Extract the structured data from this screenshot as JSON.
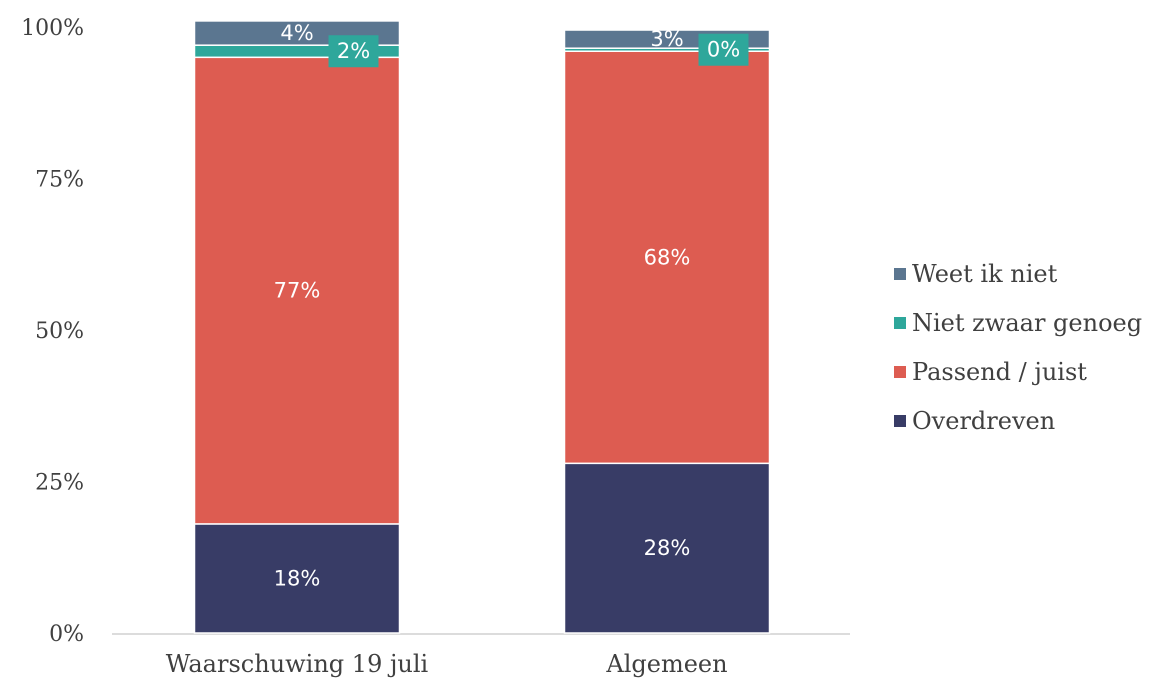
{
  "chart_data": {
    "type": "bar",
    "stacked": true,
    "categories": [
      "Waarschuwing 19 juli",
      "Algemeen"
    ],
    "ylim": [
      0,
      100
    ],
    "yticks": [
      "0%",
      "25%",
      "50%",
      "75%",
      "100%"
    ],
    "legend_position": "right",
    "grid": false,
    "series": [
      {
        "name": "Overdreven",
        "color": "#383c66",
        "values": [
          18,
          28
        ],
        "labels": [
          "18%",
          "28%"
        ]
      },
      {
        "name": "Passend / juist",
        "color": "#dd5c51",
        "values": [
          77,
          68
        ],
        "labels": [
          "77%",
          "68%"
        ]
      },
      {
        "name": "Niet zwaar genoeg",
        "color": "#2ea79b",
        "values": [
          2,
          0.5
        ],
        "labels": [
          "2%",
          "0%"
        ]
      },
      {
        "name": "Weet ik niet",
        "color": "#5b7690",
        "values": [
          4,
          3
        ],
        "labels": [
          "4%",
          "3%"
        ]
      }
    ]
  }
}
